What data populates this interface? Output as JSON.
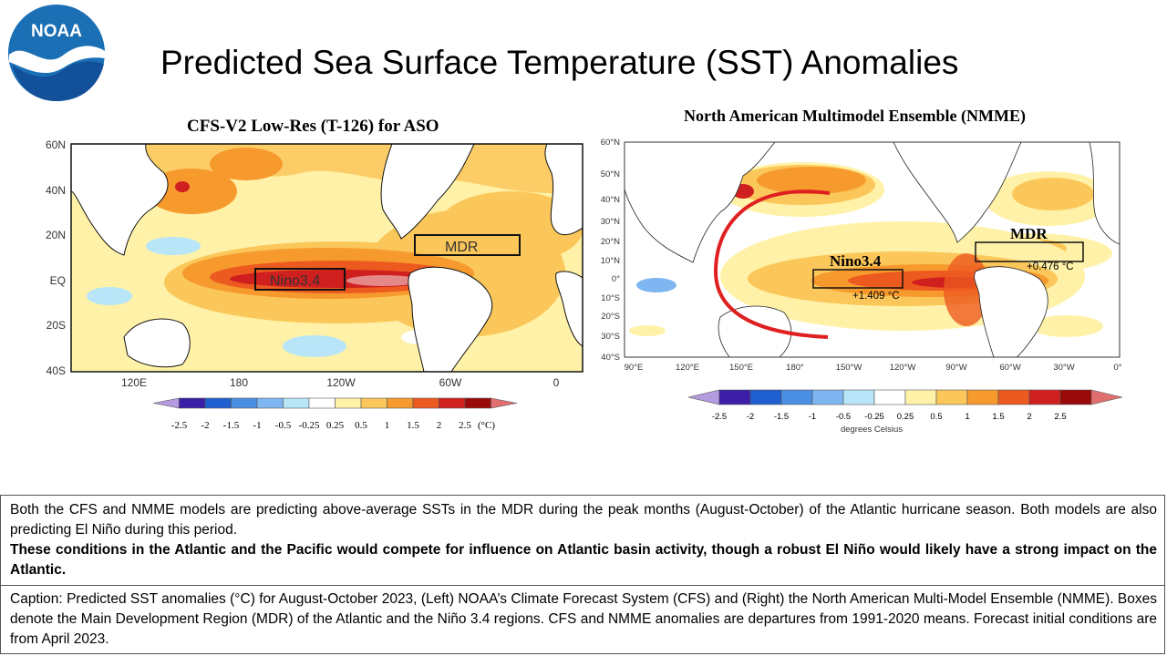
{
  "page_title": "Predicted Sea Surface Temperature (SST) Anomalies",
  "logo_text": "NOAA",
  "left_map": {
    "title": "CFS-V2 Low-Res (T-126) for ASO",
    "lat_labels": [
      "60N",
      "40N",
      "20N",
      "EQ",
      "20S",
      "40S"
    ],
    "lon_labels": [
      "120E",
      "180",
      "120W",
      "60W",
      "0"
    ],
    "box_labels": {
      "nino": "Nino3.4",
      "mdr": "MDR"
    },
    "colorbar_values": [
      "-2.5",
      "-2",
      "-1.5",
      "-1",
      "-0.5",
      "-0.25",
      "0.25",
      "0.5",
      "1",
      "1.5",
      "2",
      "2.5"
    ],
    "colorbar_unit": "(°C)"
  },
  "right_map": {
    "title": "North American Multimodel Ensemble (NMME)",
    "lat_labels": [
      "60°N",
      "50°N",
      "40°N",
      "30°N",
      "20°N",
      "10°N",
      "0°",
      "10°S",
      "20°S",
      "30°S",
      "40°S"
    ],
    "lon_labels": [
      "90°E",
      "120°E",
      "150°E",
      "180°",
      "150°W",
      "120°W",
      "90°W",
      "60°W",
      "30°W",
      "0°"
    ],
    "box_labels": {
      "nino": "Nino3.4",
      "mdr": "MDR"
    },
    "box_values": {
      "nino": "+1.409 °C",
      "mdr": "+0.476 °C"
    },
    "colorbar_values": [
      "-2.5",
      "-2",
      "-1.5",
      "-1",
      "-0.5",
      "-0.25",
      "0.25",
      "0.5",
      "1",
      "1.5",
      "2",
      "2.5"
    ],
    "colorbar_unit": "degrees Celsius"
  },
  "colors": {
    "noaa_blue": "#1a6fb5",
    "anomaly_scale": [
      "#3b1fa8",
      "#1f5fcf",
      "#4a8fe3",
      "#7fb5f0",
      "#b8e6f8",
      "#ffffff",
      "#fff2a8",
      "#fbc75a",
      "#f79a2e",
      "#ec5a1f",
      "#cf1f1f",
      "#9b0a0a"
    ],
    "arc": "#e02020"
  },
  "summary": {
    "paragraph1": "Both the CFS and NMME models are predicting above-average SSTs in the MDR during the peak months (August-October) of the Atlantic hurricane season. Both models are also predicting El Niño during this period.",
    "paragraph2": "These conditions in the Atlantic and the Pacific would compete for influence on Atlantic basin activity, though a robust El Niño would likely have a strong impact on the Atlantic."
  },
  "caption": "Caption: Predicted SST anomalies (°C) for August-October 2023, (Left) NOAA’s Climate Forecast System (CFS) and (Right) the North American Multi-Model Ensemble (NMME). Boxes denote the Main Development Region (MDR) of the Atlantic and the Niño 3.4 regions. CFS and NMME anomalies are departures from 1991-2020 means.  Forecast initial conditions are from April 2023."
}
